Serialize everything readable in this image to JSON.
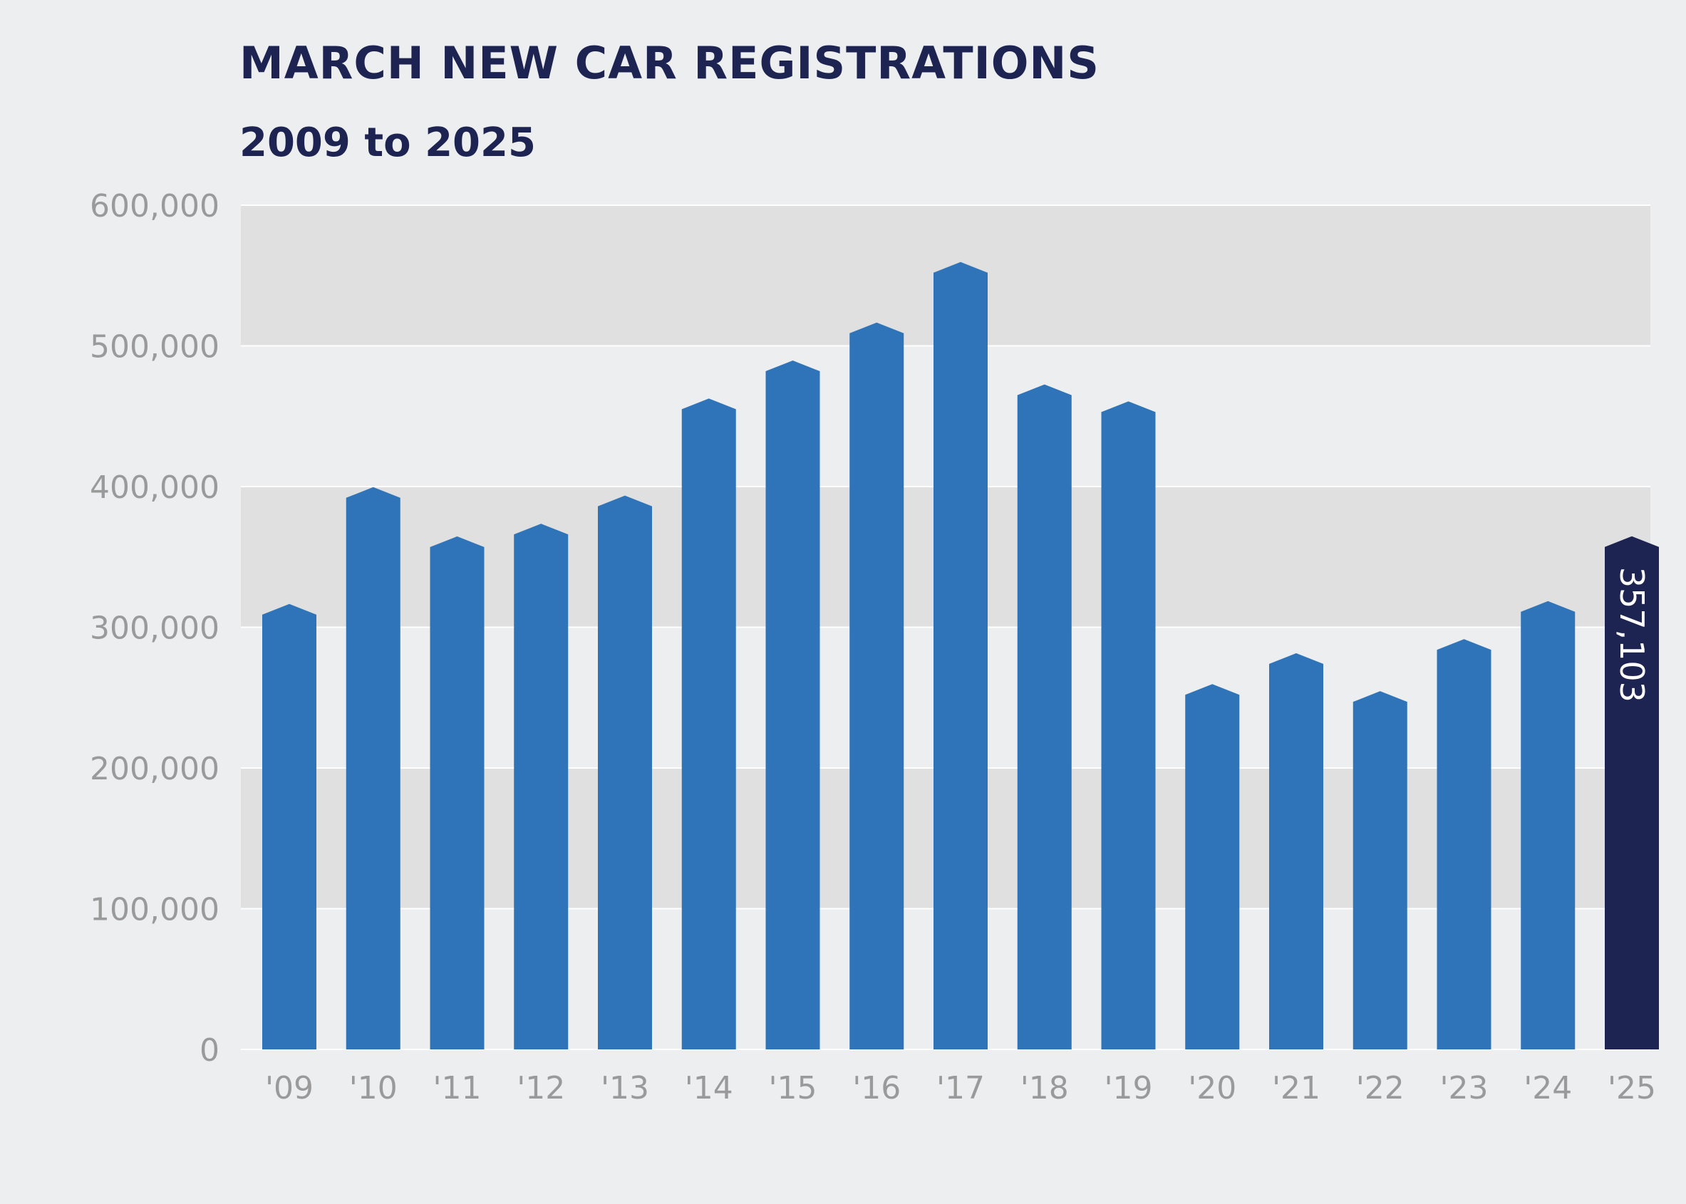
{
  "chart_data": {
    "type": "bar",
    "title": "MARCH NEW CAR REGISTRATIONS",
    "subtitle": "2009 to 2025",
    "xlabel": "",
    "ylabel": "",
    "categories": [
      "'09",
      "'10",
      "'11",
      "'12",
      "'13",
      "'14",
      "'15",
      "'16",
      "'17",
      "'18",
      "'19",
      "'20",
      "'21",
      "'22",
      "'23",
      "'24",
      "'25"
    ],
    "series": [
      {
        "values": [
          309000,
          392000,
          357000,
          366000,
          386000,
          455000,
          482000,
          509000,
          552000,
          465000,
          453000,
          252000,
          274000,
          247000,
          284000,
          311000,
          357103
        ]
      }
    ],
    "data_labels": [
      {
        "category": "'25",
        "text": "357,103"
      }
    ],
    "ylim": [
      0,
      600000
    ],
    "yticks": [
      0,
      100000,
      200000,
      300000,
      400000,
      500000,
      600000
    ],
    "ytick_labels": [
      "0",
      "100,000",
      "200,000",
      "300,000",
      "400,000",
      "500,000",
      "600,000"
    ],
    "grid": true,
    "colors": {
      "bar": "#2f74b8",
      "highlight": "#1d2452",
      "band": "#e0e0e0",
      "gridline": "#ffffff",
      "background": "#edeef0",
      "tick_text": "#9a9a9a",
      "title_text": "#1d2452"
    },
    "highlight_category": "'25"
  }
}
